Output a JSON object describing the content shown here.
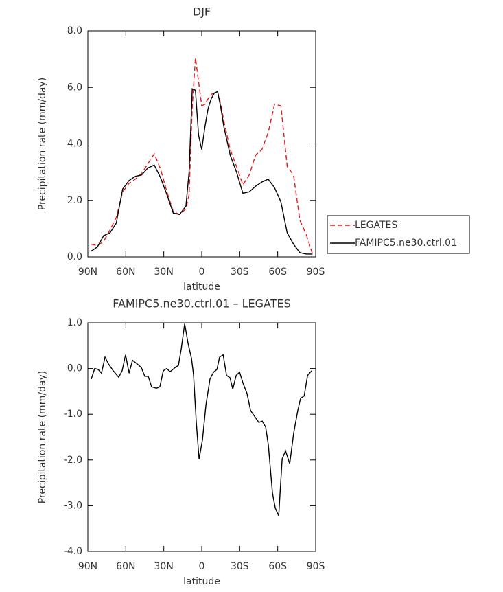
{
  "chart_data": [
    {
      "type": "line",
      "title": "DJF",
      "xlabel": "latitude",
      "ylabel": "Precipitation rate (mm/day)",
      "x": [
        87.5,
        82.5,
        77.5,
        72.5,
        67.5,
        62.5,
        57.5,
        52.5,
        47.5,
        42.5,
        37.5,
        32.5,
        27.5,
        22.5,
        17.5,
        12.5,
        10,
        7.5,
        5,
        2.5,
        0,
        -2.5,
        -5,
        -7.5,
        -10,
        -12.5,
        -15,
        -17.5,
        -22.5,
        -27.5,
        -32.5,
        -37.5,
        -42.5,
        -47.5,
        -52.5,
        -57.5,
        -62.5,
        -67.5,
        -72.5,
        -77.5,
        -82.5,
        -87.5
      ],
      "series": [
        {
          "name": "LEGATES",
          "color": "#e41a1c",
          "line_style": "dashed",
          "values": [
            0.45,
            0.4,
            0.55,
            0.95,
            1.4,
            2.3,
            2.6,
            2.75,
            2.95,
            3.3,
            3.65,
            3.1,
            2.3,
            1.6,
            1.5,
            1.7,
            2.2,
            5.3,
            7.05,
            6.2,
            5.35,
            5.4,
            5.6,
            5.75,
            5.8,
            5.85,
            5.4,
            4.8,
            3.8,
            3.2,
            2.55,
            2.9,
            3.6,
            3.8,
            4.4,
            5.4,
            5.35,
            3.2,
            2.9,
            1.3,
            0.8,
            0.1
          ]
        },
        {
          "name": "FAMIPC5.ne30.ctrl.01",
          "color": "#000000",
          "line_style": "solid",
          "values": [
            0.2,
            0.35,
            0.75,
            0.85,
            1.2,
            2.4,
            2.7,
            2.85,
            2.9,
            3.15,
            3.25,
            2.8,
            2.2,
            1.55,
            1.5,
            1.8,
            3.0,
            5.95,
            5.9,
            4.3,
            3.8,
            4.6,
            5.25,
            5.6,
            5.8,
            5.85,
            5.3,
            4.6,
            3.6,
            3.0,
            2.25,
            2.3,
            2.5,
            2.65,
            2.75,
            2.45,
            1.95,
            0.85,
            0.45,
            0.15,
            0.1,
            0.1
          ]
        }
      ],
      "xlim": [
        90,
        -90
      ],
      "xticks": [
        {
          "value": 90,
          "label": "90N"
        },
        {
          "value": 60,
          "label": "60N"
        },
        {
          "value": 30,
          "label": "30N"
        },
        0,
        {
          "value": -30,
          "label": "30S"
        },
        {
          "value": -60,
          "label": "60S"
        },
        {
          "value": -90,
          "label": "90S"
        }
      ],
      "ylim": [
        0,
        8
      ],
      "yticks": [
        {
          "value": 0,
          "label": "0.0"
        },
        {
          "value": 2,
          "label": "2.0"
        },
        {
          "value": 4,
          "label": "4.0"
        },
        {
          "value": 6,
          "label": "6.0"
        },
        {
          "value": 8,
          "label": "8.0"
        }
      ],
      "legend": "right"
    },
    {
      "type": "line",
      "title": "FAMIPC5.ne30.ctrl.01 – LEGATES",
      "xlabel": "latitude",
      "ylabel": "Precipitation rate (mm/day)",
      "x": [
        87.3,
        84.6,
        81.9,
        79.2,
        76.4,
        73.7,
        69.9,
        65.6,
        62.9,
        60.2,
        57.4,
        54.7,
        51.0,
        47.7,
        45.0,
        42.3,
        39.6,
        35.8,
        33.1,
        30.4,
        27.7,
        25.0,
        21.1,
        18.4,
        16.2,
        13.5,
        10.8,
        8.1,
        6.5,
        4.3,
        2.1,
        -0.6,
        -3.3,
        -6.5,
        -9.3,
        -12.0,
        -14.1,
        -16.9,
        -19.6,
        -22.3,
        -24.5,
        -27.2,
        -29.9,
        -32.6,
        -35.8,
        -38.6,
        -41.8,
        -45.1,
        -47.8,
        -50.5,
        -52.6,
        -55.9,
        -58.1,
        -60.8,
        -63.5,
        -66.2,
        -69.5,
        -72.7,
        -76.0,
        -78.1,
        -80.9,
        -83.6,
        -86.8
      ],
      "series": [
        {
          "color": "#000000",
          "line_style": "solid",
          "values": [
            -0.23,
            0,
            -0.02,
            -0.1,
            0.25,
            0.1,
            -0.05,
            -0.19,
            -0.05,
            0.3,
            -0.1,
            0.18,
            0.1,
            0.02,
            -0.17,
            -0.17,
            -0.4,
            -0.43,
            -0.4,
            -0.05,
            0.0,
            -0.07,
            0.02,
            0.07,
            0.43,
            0.98,
            0.55,
            0.22,
            -0.13,
            -1.18,
            -1.98,
            -1.55,
            -0.8,
            -0.23,
            -0.08,
            -0.02,
            0.25,
            0.3,
            -0.15,
            -0.2,
            -0.45,
            -0.15,
            -0.08,
            -0.32,
            -0.55,
            -0.92,
            -1.05,
            -1.18,
            -1.15,
            -1.28,
            -1.67,
            -2.73,
            -3.05,
            -3.22,
            -1.98,
            -1.8,
            -2.08,
            -1.4,
            -0.9,
            -0.65,
            -0.6,
            -0.15,
            -0.05
          ]
        }
      ],
      "xlim": [
        90,
        -90
      ],
      "xticks": [
        {
          "value": 90,
          "label": "90N"
        },
        {
          "value": 60,
          "label": "60N"
        },
        {
          "value": 30,
          "label": "30N"
        },
        0,
        {
          "value": -30,
          "label": "30S"
        },
        {
          "value": -60,
          "label": "60S"
        },
        {
          "value": -90,
          "label": "90S"
        }
      ],
      "ylim": [
        -4,
        1
      ],
      "yticks": [
        {
          "value": -4,
          "label": "-4.0"
        },
        {
          "value": -3,
          "label": "-3.0"
        },
        {
          "value": -2,
          "label": "-2.0"
        },
        {
          "value": -1,
          "label": "-1.0"
        },
        {
          "value": 0,
          "label": "0.0"
        },
        {
          "value": 1,
          "label": "1.0"
        }
      ]
    }
  ]
}
